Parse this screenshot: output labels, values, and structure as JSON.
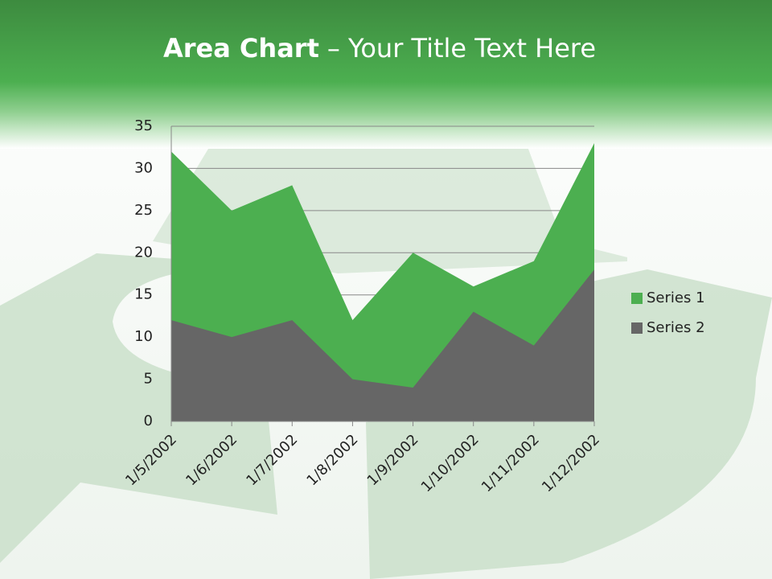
{
  "chart_data": {
    "type": "area",
    "title_parts": [
      "Area Chart",
      "– Your Title Text Here"
    ],
    "categories": [
      "1/5/2002",
      "1/6/2002",
      "1/7/2002",
      "1/8/2002",
      "1/9/2002",
      "1/10/2002",
      "1/11/2002",
      "1/12/2002"
    ],
    "series": [
      {
        "name": "Series 1",
        "color": "#4caf50",
        "values": [
          32,
          25,
          28,
          12,
          20,
          16,
          19,
          33
        ]
      },
      {
        "name": "Series 2",
        "color": "#666666",
        "values": [
          12,
          10,
          12,
          5,
          4,
          13,
          9,
          18
        ]
      }
    ],
    "ylim": [
      0,
      35
    ],
    "yticks": [
      0,
      5,
      10,
      15,
      20,
      25,
      30,
      35
    ],
    "grid": true,
    "legend": "right"
  }
}
